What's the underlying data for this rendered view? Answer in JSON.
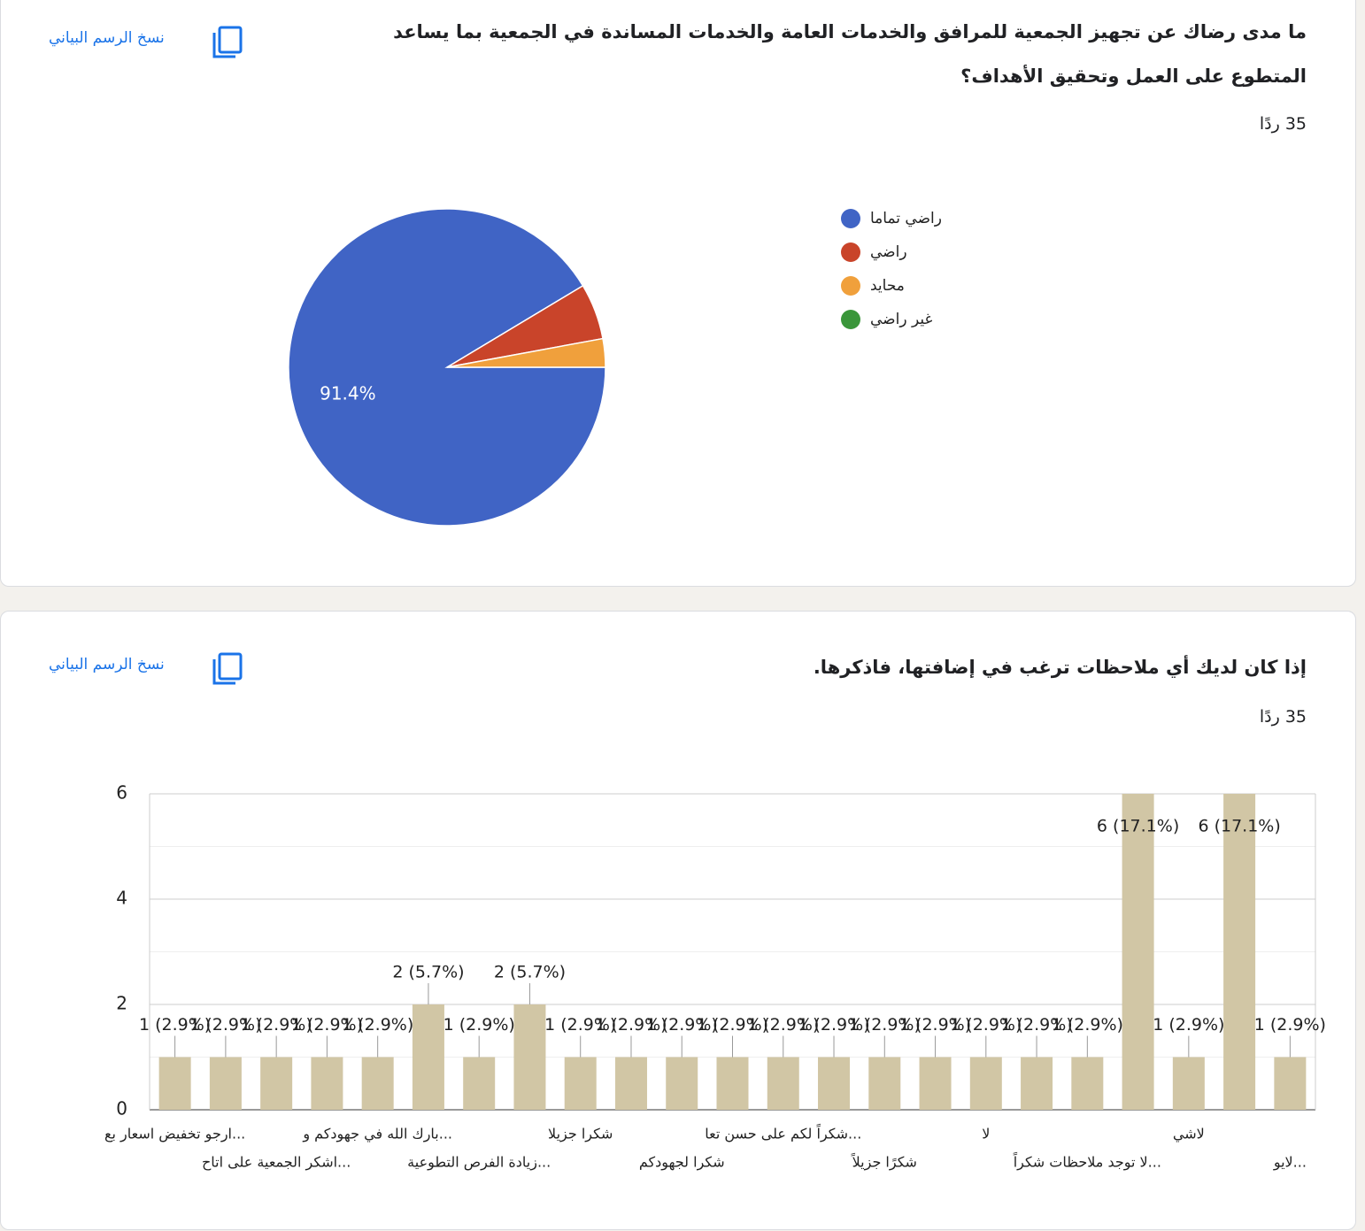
{
  "chart_data": [
    {
      "type": "pie",
      "title": "ما مدى رضاك عن تجهيز الجمعية للمرافق والخدمات العامة والخدمات المساندة في الجمعية  بما يساعد المتطوع على العمل وتحقيق الأهداف؟",
      "subtitle": "35 ردًا",
      "copy_label": "نسخ الرسم البياني",
      "categories": [
        "راضي تماما",
        "راضي",
        "محايد",
        "غير راضي"
      ],
      "values": [
        91.4,
        5.7,
        2.9,
        0
      ],
      "value_labels": [
        "91.4%",
        null,
        null,
        null
      ],
      "colors": [
        "#4064c5",
        "#c9442a",
        "#f0a03c",
        "#3a963a"
      ],
      "legend": "right"
    },
    {
      "type": "bar",
      "title": "إذا كان لديك أي ملاحظات ترغب في إضافتها، فاذكرها.",
      "subtitle": "35 ردًا",
      "copy_label": "نسخ الرسم البياني",
      "categories": [
        "ارجو تخفيض اسعار بع...",
        null,
        "اشكر الجمعية على اتاح...",
        null,
        "بارك الله في جهودكم و...",
        null,
        "زيادة الفرص التطوعية...",
        null,
        "شكرا جزيلا",
        null,
        "شكرا لجهودكم",
        null,
        "شكراً لكم على حسن تعا...",
        null,
        "شكرًا جزيلاً",
        null,
        "لا",
        null,
        "لا توجد ملاحظات شكراً...",
        null,
        "لاشي",
        null,
        "لايو..."
      ],
      "values": [
        1,
        1,
        1,
        1,
        1,
        2,
        1,
        2,
        1,
        1,
        1,
        1,
        1,
        1,
        1,
        1,
        1,
        1,
        1,
        6,
        1,
        6,
        1
      ],
      "value_labels": [
        "1 (2.9%)",
        "1 (2.9%)",
        "1 (2.9%)",
        "1 (2.9%)",
        "1 (2.9%)",
        "2 (5.7%)",
        "1 (2.9%)",
        "2 (5.7%)",
        "1 (2.9%)",
        "1 (2.9%)",
        "1 (2.9%)",
        "1 (2.9%)",
        "1 (2.9%)",
        "1 (2.9%)",
        "1 (2.9%)",
        "1 (2.9%)",
        "1 (2.9%)",
        "1 (2.9%)",
        "1 (2.9%)",
        "6 (17.1%)",
        "1 (2.9%)",
        "6 (17.1%)",
        "1 (2.9%)"
      ],
      "color": "#d1c6a5",
      "ylim": [
        0,
        6
      ],
      "yticks": [
        0,
        2,
        4,
        6
      ],
      "minor_yticks": [
        1,
        3,
        5
      ],
      "grid": true
    }
  ]
}
